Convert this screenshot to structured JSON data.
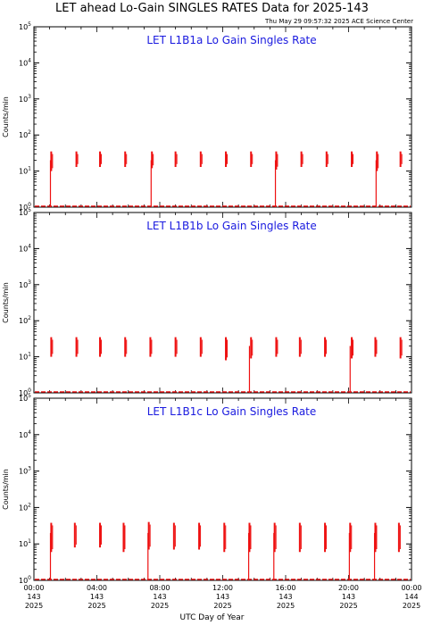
{
  "header": {
    "title": "LET ahead Lo-Gain SINGLES RATES Data for 2025-143",
    "timestamp": "Thu May 29 09:57:32 2025 ACE Science Center"
  },
  "x_axis_title": "UTC Day of Year",
  "colors": {
    "data": "#ee1111",
    "panel_title": "#1a1adf",
    "axes": "#000000"
  },
  "chart_data": [
    {
      "type": "line",
      "title": "LET L1B1a Lo Gain Singles Rate",
      "ylabel": "Counts/min",
      "yscale": "log",
      "ylim": [
        1,
        100000
      ],
      "xlim": [
        0,
        24
      ],
      "x_units": "hours UTC, day 143",
      "bursts": [
        {
          "t": 1.1,
          "peak": 35,
          "floor": 10
        },
        {
          "t": 2.7,
          "peak": 35,
          "floor": 13
        },
        {
          "t": 4.2,
          "peak": 35,
          "floor": 13
        },
        {
          "t": 5.8,
          "peak": 35,
          "floor": 13
        },
        {
          "t": 7.5,
          "peak": 35,
          "floor": 12
        },
        {
          "t": 9.0,
          "peak": 35,
          "floor": 13
        },
        {
          "t": 10.6,
          "peak": 35,
          "floor": 13
        },
        {
          "t": 12.2,
          "peak": 35,
          "floor": 13
        },
        {
          "t": 13.8,
          "peak": 35,
          "floor": 13
        },
        {
          "t": 15.4,
          "peak": 35,
          "floor": 11
        },
        {
          "t": 17.0,
          "peak": 35,
          "floor": 13
        },
        {
          "t": 18.6,
          "peak": 35,
          "floor": 13
        },
        {
          "t": 20.2,
          "peak": 35,
          "floor": 13
        },
        {
          "t": 21.8,
          "peak": 35,
          "floor": 10
        },
        {
          "t": 23.3,
          "peak": 35,
          "floor": 13
        }
      ],
      "dropouts": [
        1.05,
        7.45,
        15.35,
        21.75
      ]
    },
    {
      "type": "line",
      "title": "LET L1B1b Lo Gain Singles Rate",
      "ylabel": "Counts/min",
      "yscale": "log",
      "ylim": [
        1,
        100000
      ],
      "xlim": [
        0,
        24
      ],
      "x_units": "hours UTC, day 143",
      "bursts": [
        {
          "t": 1.1,
          "peak": 35,
          "floor": 10
        },
        {
          "t": 2.7,
          "peak": 35,
          "floor": 10
        },
        {
          "t": 4.2,
          "peak": 35,
          "floor": 10
        },
        {
          "t": 5.8,
          "peak": 35,
          "floor": 10
        },
        {
          "t": 7.4,
          "peak": 35,
          "floor": 10
        },
        {
          "t": 9.0,
          "peak": 35,
          "floor": 10
        },
        {
          "t": 10.6,
          "peak": 35,
          "floor": 10
        },
        {
          "t": 12.2,
          "peak": 35,
          "floor": 8
        },
        {
          "t": 13.8,
          "peak": 35,
          "floor": 9
        },
        {
          "t": 15.4,
          "peak": 35,
          "floor": 10
        },
        {
          "t": 16.9,
          "peak": 35,
          "floor": 10
        },
        {
          "t": 18.5,
          "peak": 35,
          "floor": 10
        },
        {
          "t": 20.2,
          "peak": 35,
          "floor": 9
        },
        {
          "t": 21.7,
          "peak": 35,
          "floor": 10
        },
        {
          "t": 23.3,
          "peak": 35,
          "floor": 9
        }
      ],
      "dropouts": [
        13.7,
        20.1
      ]
    },
    {
      "type": "line",
      "title": "LET L1B1c Lo Gain Singles Rate",
      "ylabel": "Counts/min",
      "yscale": "log",
      "ylim": [
        1,
        100000
      ],
      "xlim": [
        0,
        24
      ],
      "x_units": "hours UTC, day 143",
      "xticks": [
        {
          "time": "00:00",
          "doy": "143",
          "year": "2025"
        },
        {
          "time": "04:00",
          "doy": "143",
          "year": "2025"
        },
        {
          "time": "08:00",
          "doy": "143",
          "year": "2025"
        },
        {
          "time": "12:00",
          "doy": "143",
          "year": "2025"
        },
        {
          "time": "16:00",
          "doy": "143",
          "year": "2025"
        },
        {
          "time": "20:00",
          "doy": "143",
          "year": "2025"
        },
        {
          "time": "00:00",
          "doy": "144",
          "year": "2025"
        }
      ],
      "bursts": [
        {
          "t": 1.1,
          "peak": 38,
          "floor": 6
        },
        {
          "t": 2.6,
          "peak": 38,
          "floor": 8
        },
        {
          "t": 4.2,
          "peak": 38,
          "floor": 8
        },
        {
          "t": 5.7,
          "peak": 38,
          "floor": 6
        },
        {
          "t": 7.3,
          "peak": 40,
          "floor": 7
        },
        {
          "t": 8.9,
          "peak": 38,
          "floor": 7
        },
        {
          "t": 10.5,
          "peak": 38,
          "floor": 7
        },
        {
          "t": 12.1,
          "peak": 38,
          "floor": 6
        },
        {
          "t": 13.7,
          "peak": 38,
          "floor": 6
        },
        {
          "t": 15.3,
          "peak": 38,
          "floor": 6
        },
        {
          "t": 16.9,
          "peak": 38,
          "floor": 6
        },
        {
          "t": 18.5,
          "peak": 38,
          "floor": 6
        },
        {
          "t": 20.1,
          "peak": 38,
          "floor": 6
        },
        {
          "t": 21.7,
          "peak": 38,
          "floor": 6
        },
        {
          "t": 23.2,
          "peak": 38,
          "floor": 6
        }
      ],
      "dropouts": [
        1.05,
        7.25,
        13.65,
        15.25,
        20.05,
        21.65
      ]
    }
  ]
}
